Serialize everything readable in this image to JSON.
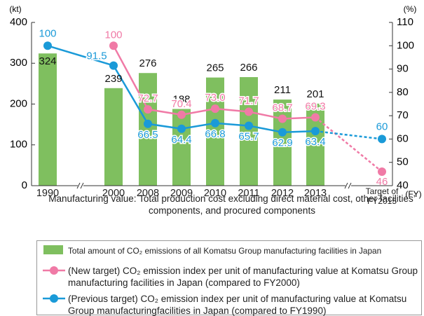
{
  "chart_data": {
    "type": "combo",
    "y_axis_label": "(kt)",
    "y2_axis_label": "(%)",
    "x_axis_label": "(FY)",
    "note": "Manufacturing value: Total production cost excluding direct material cost, other facilities’ components, and procured components",
    "categories": [
      "1990",
      "2000",
      "2008",
      "2009",
      "2010",
      "2011",
      "2012",
      "2013",
      "Target of FY2015"
    ],
    "ylim": [
      0,
      400
    ],
    "yticks": [
      0,
      100,
      200,
      300,
      400
    ],
    "y2lim": [
      40,
      110
    ],
    "y2ticks": [
      40,
      50,
      60,
      70,
      80,
      90,
      100,
      110
    ],
    "series": [
      {
        "name": "Total amount of CO₂ emissions of all Komatsu Group manufacturing facilities in Japan",
        "type": "bar",
        "color": "#7fbf5f",
        "values": [
          324,
          239,
          276,
          188,
          265,
          266,
          211,
          201,
          null
        ]
      },
      {
        "name": "(New target) CO₂ emission index per unit of manufacturing value at Komatsu Group manufacturing facilities in Japan (compared to FY2000)",
        "type": "line",
        "axis": "y2",
        "color": "#f07aa6",
        "values": [
          null,
          100,
          72.7,
          70.4,
          73.0,
          71.7,
          68.7,
          69.3,
          46
        ],
        "value_labels": [
          null,
          "100",
          "72.7",
          "70.4",
          "73.0",
          "71.7",
          "68.7",
          "69.3",
          "46"
        ]
      },
      {
        "name": "(Previous target) CO₂ emission index per unit of manufacturing value at Komatsu Group manufacturingfacilities in Japan (compared to FY1990)",
        "type": "line",
        "axis": "y2",
        "color": "#1a9ad8",
        "values": [
          100,
          91.5,
          66.5,
          64.4,
          66.8,
          65.7,
          62.9,
          63.4,
          60
        ],
        "value_labels": [
          "100",
          "91.5",
          "66.5",
          "64.4",
          "66.8",
          "65.7",
          "62.9",
          "63.4",
          "60"
        ]
      }
    ]
  }
}
